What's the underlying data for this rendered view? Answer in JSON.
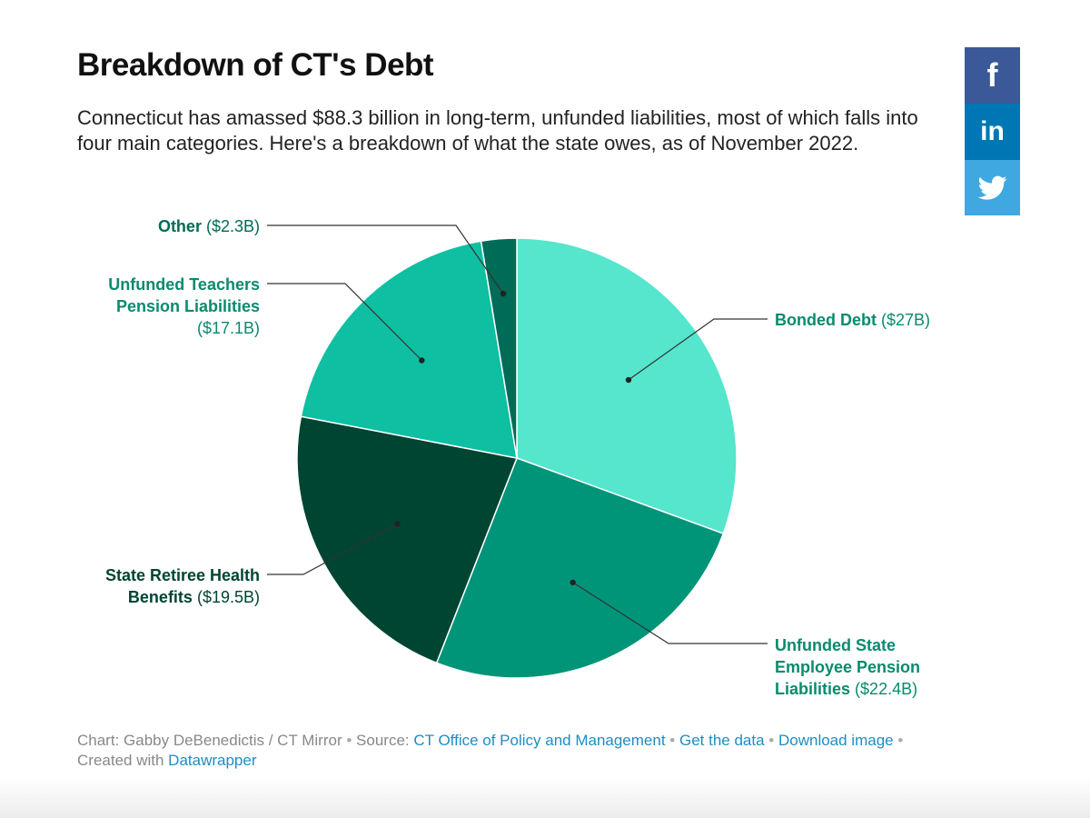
{
  "title": "Breakdown of CT's Debt",
  "description": "Connecticut has amassed $88.3 billion in long-term, unfunded liabilities, most of which falls into four main categories. Here's a breakdown of what the state owes, as of November 2022.",
  "share": {
    "facebook": "f",
    "linkedin": "in",
    "twitter": "twitter-icon"
  },
  "chart_data": {
    "type": "pie",
    "title": "Breakdown of CT's Debt",
    "unit": "billion USD",
    "start": "12 o'clock, clockwise",
    "slices": [
      {
        "name": "Bonded Debt",
        "value": 27,
        "value_label": "($27B)",
        "color": "#55e6cd"
      },
      {
        "name": "Unfunded State Employee Pension Liabilities",
        "value": 22.4,
        "value_label": "($22.4B)",
        "color": "#009478"
      },
      {
        "name": "State Retiree Health Benefits",
        "value": 19.5,
        "value_label": "($19.5B)",
        "color": "#004432"
      },
      {
        "name": "Unfunded Teachers Pension Liabilities",
        "value": 17.1,
        "value_label": "($17.1B)",
        "color": "#0ebfa1"
      },
      {
        "name": "Other",
        "value": 2.3,
        "value_label": "($2.3B)",
        "color": "#006b56"
      }
    ]
  },
  "labels": {
    "bonded": {
      "name": "Bonded Debt",
      "value": "($27B)"
    },
    "employee": {
      "line1": "Unfunded State",
      "line2": "Employee Pension",
      "line3": "Liabilities",
      "value": "($22.4B)"
    },
    "retiree": {
      "line1": "State Retiree Health",
      "line2": "Benefits",
      "value": "($19.5B)"
    },
    "teachers": {
      "line1": "Unfunded Teachers",
      "line2": "Pension Liabilities",
      "value": "($17.1B)"
    },
    "other": {
      "name": "Other",
      "value": "($2.3B)"
    }
  },
  "label_colors": {
    "bonded": "#0a8a6e",
    "employee": "#0a8a6e",
    "retiree": "#004432",
    "teachers": "#0a8a6e",
    "other": "#006b56"
  },
  "footer": {
    "chart_credit": "Chart: Gabby DeBenedictis / CT Mirror",
    "separator": "•",
    "source_label": "Source:",
    "source_link": "CT Office of Policy and Management",
    "get_data": "Get the data",
    "download_image": "Download image",
    "created_with": "Created with",
    "tool_link": "Datawrapper"
  }
}
